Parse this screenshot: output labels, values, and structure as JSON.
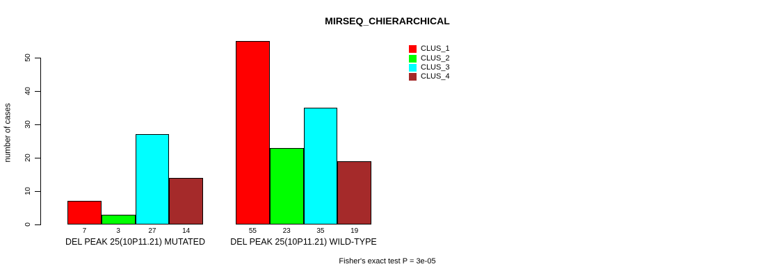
{
  "chart_data": {
    "type": "bar",
    "title": "MIRSEQ_CHIERARCHICAL",
    "ylabel": "number of cases",
    "xlabel": "",
    "ylim": [
      0,
      50
    ],
    "yticks": [
      0,
      10,
      20,
      30,
      40,
      50
    ],
    "grid": false,
    "legend_position": "top-right",
    "categories": [
      "DEL PEAK 25(10P11.21) MUTATED",
      "DEL PEAK 25(10P11.21) WILD-TYPE"
    ],
    "series": [
      {
        "name": "CLUS_1",
        "color": "#FF0000",
        "values": [
          7,
          55
        ]
      },
      {
        "name": "CLUS_2",
        "color": "#00FF00",
        "values": [
          3,
          23
        ]
      },
      {
        "name": "CLUS_3",
        "color": "#00FFFF",
        "values": [
          27,
          35
        ]
      },
      {
        "name": "CLUS_4",
        "color": "#A52A2A",
        "values": [
          14,
          19
        ]
      }
    ],
    "bar_value_labels": [
      [
        "7",
        "3",
        "27",
        "14"
      ],
      [
        "55",
        "23",
        "35",
        "19"
      ]
    ],
    "annotation": "Fisher's exact test P = 3e-05"
  },
  "colors": {
    "background": "#FFFFFF",
    "axis": "#000000",
    "text": "#000000",
    "bar_border": "#000000"
  }
}
